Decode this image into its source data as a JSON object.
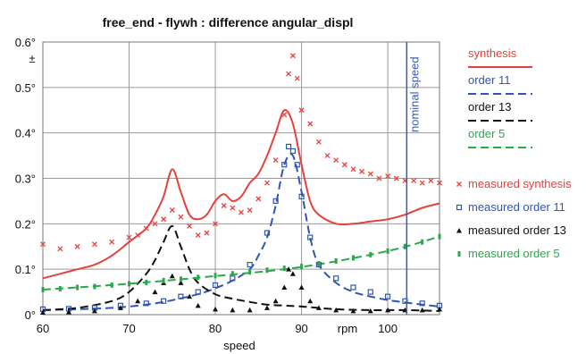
{
  "chart_data": {
    "type": "line",
    "title": "free_end - flywh :  difference angular_displ",
    "ylabel": "±",
    "xlabel": "speed",
    "x_unit_label": "rpm",
    "xlim": [
      60,
      106
    ],
    "ylim": [
      0,
      0.6
    ],
    "x_ticks": [
      "60",
      "70",
      "80",
      "90",
      "100"
    ],
    "x_tick_values": [
      60,
      70,
      80,
      90,
      100
    ],
    "y_ticks": [
      "0°",
      "0.1°",
      "0.2°",
      "0.3°",
      "0.4°",
      "0.5°",
      "0.6°"
    ],
    "y_tick_values": [
      0,
      0.1,
      0.2,
      0.3,
      0.4,
      0.5,
      0.6
    ],
    "grid": true,
    "legend_position": "right",
    "annotation": {
      "label": "nominal speed",
      "x": 102.2,
      "color": "#3a5bb0"
    },
    "series": [
      {
        "name": "synthesis",
        "kind": "solid",
        "color": "#e8403a",
        "x": [
          60,
          62,
          64,
          66,
          68,
          70,
          72,
          73,
          74,
          75,
          76,
          77,
          78,
          79,
          80,
          81,
          82,
          83,
          84,
          85,
          86,
          87,
          88,
          89,
          90,
          91,
          92,
          94,
          96,
          98,
          100,
          102,
          104,
          106
        ],
        "y": [
          0.08,
          0.09,
          0.1,
          0.11,
          0.13,
          0.16,
          0.19,
          0.22,
          0.26,
          0.32,
          0.27,
          0.22,
          0.21,
          0.22,
          0.25,
          0.265,
          0.25,
          0.26,
          0.29,
          0.31,
          0.35,
          0.4,
          0.45,
          0.42,
          0.33,
          0.25,
          0.22,
          0.2,
          0.2,
          0.205,
          0.21,
          0.22,
          0.235,
          0.245
        ]
      },
      {
        "name": "order 11",
        "kind": "dashed",
        "color": "#2f56b4",
        "x": [
          60,
          64,
          68,
          70,
          72,
          74,
          76,
          78,
          80,
          82,
          84,
          85,
          86,
          87,
          88,
          89,
          90,
          91,
          92,
          94,
          96,
          98,
          100,
          102,
          104,
          106
        ],
        "y": [
          0.01,
          0.012,
          0.015,
          0.018,
          0.022,
          0.028,
          0.036,
          0.045,
          0.058,
          0.075,
          0.1,
          0.13,
          0.17,
          0.24,
          0.33,
          0.35,
          0.27,
          0.17,
          0.11,
          0.07,
          0.05,
          0.04,
          0.032,
          0.027,
          0.022,
          0.018
        ]
      },
      {
        "name": "order 13",
        "kind": "dashed",
        "color": "#111111",
        "x": [
          60,
          64,
          68,
          70,
          72,
          73,
          74,
          75,
          76,
          77,
          78,
          80,
          82,
          84,
          86,
          88,
          90,
          94,
          98,
          102,
          106
        ],
        "y": [
          0.01,
          0.015,
          0.03,
          0.05,
          0.09,
          0.12,
          0.16,
          0.195,
          0.15,
          0.1,
          0.07,
          0.045,
          0.035,
          0.028,
          0.022,
          0.02,
          0.018,
          0.012,
          0.01,
          0.01,
          0.008
        ]
      },
      {
        "name": "order 5",
        "kind": "dashed",
        "color": "#2aa84a",
        "x": [
          60,
          70,
          80,
          90,
          100,
          106
        ],
        "y": [
          0.055,
          0.068,
          0.085,
          0.105,
          0.14,
          0.172
        ]
      },
      {
        "name": "measured  synthesis",
        "kind": "marker",
        "color": "#e8403a",
        "marker": "x",
        "x": [
          60,
          62,
          64,
          66,
          68,
          70,
          71,
          72,
          73,
          74,
          75,
          76,
          77,
          78,
          79,
          80,
          81,
          82,
          83,
          84,
          85,
          86,
          87,
          88,
          88.5,
          89,
          89.5,
          90,
          91,
          92,
          93,
          94,
          95,
          96,
          97,
          98,
          99,
          100,
          101,
          102,
          103,
          104,
          105,
          106
        ],
        "y": [
          0.155,
          0.145,
          0.15,
          0.155,
          0.16,
          0.17,
          0.175,
          0.19,
          0.2,
          0.21,
          0.23,
          0.215,
          0.195,
          0.175,
          0.18,
          0.2,
          0.24,
          0.235,
          0.225,
          0.23,
          0.255,
          0.29,
          0.34,
          0.44,
          0.53,
          0.57,
          0.52,
          0.45,
          0.42,
          0.38,
          0.35,
          0.34,
          0.33,
          0.32,
          0.315,
          0.31,
          0.3,
          0.305,
          0.3,
          0.295,
          0.295,
          0.29,
          0.295,
          0.29
        ]
      },
      {
        "name": "measured  order 11",
        "kind": "marker",
        "color": "#2f56b4",
        "marker": "square",
        "x": [
          60,
          63,
          66,
          69,
          72,
          74,
          76,
          78,
          80,
          82,
          84,
          86,
          87,
          88,
          88.5,
          89,
          89.5,
          90,
          91,
          92,
          94,
          96,
          98,
          100,
          102,
          104,
          106
        ],
        "y": [
          0.012,
          0.013,
          0.015,
          0.02,
          0.025,
          0.03,
          0.04,
          0.05,
          0.065,
          0.08,
          0.11,
          0.18,
          0.25,
          0.33,
          0.37,
          0.36,
          0.33,
          0.26,
          0.17,
          0.11,
          0.08,
          0.06,
          0.05,
          0.04,
          0.03,
          0.025,
          0.02
        ]
      },
      {
        "name": "measured  order 13",
        "kind": "marker",
        "color": "#111111",
        "marker": "triangle",
        "x": [
          60,
          63,
          66,
          69,
          71,
          73,
          74,
          75,
          76,
          77,
          78,
          80,
          82,
          84,
          86,
          87,
          88,
          88.5,
          89,
          90,
          91,
          92,
          94,
          96,
          98,
          100,
          102,
          104,
          106
        ],
        "y": [
          0.005,
          0.006,
          0.008,
          0.015,
          0.03,
          0.05,
          0.07,
          0.085,
          0.07,
          0.04,
          0.02,
          0.012,
          0.01,
          0.01,
          0.015,
          0.03,
          0.06,
          0.1,
          0.09,
          0.06,
          0.03,
          0.015,
          0.01,
          0.008,
          0.008,
          0.01,
          0.01,
          0.01,
          0.012
        ]
      },
      {
        "name": "measured  order 5",
        "kind": "marker",
        "color": "#2aa84a",
        "marker": "bar",
        "x": [
          60,
          62,
          64,
          66,
          68,
          70,
          72,
          74,
          76,
          78,
          80,
          82,
          84,
          86,
          88,
          90,
          92,
          94,
          96,
          98,
          100,
          102,
          104,
          106
        ],
        "y": [
          0.055,
          0.057,
          0.06,
          0.062,
          0.065,
          0.068,
          0.071,
          0.075,
          0.078,
          0.082,
          0.086,
          0.09,
          0.094,
          0.098,
          0.102,
          0.106,
          0.112,
          0.118,
          0.125,
          0.132,
          0.14,
          0.15,
          0.16,
          0.172
        ]
      }
    ]
  }
}
